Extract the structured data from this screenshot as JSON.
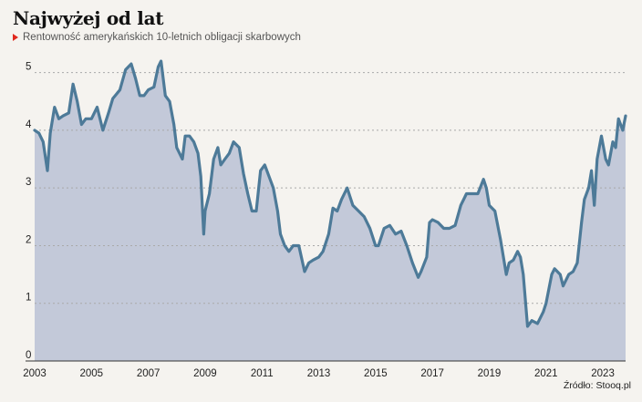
{
  "header": {
    "title": "Najwyżej od lat",
    "subtitle": "Rentowność amerykańskich 10-letnich obligacji skarbowych"
  },
  "footer": {
    "source": "Źródło: Stooq.pl"
  },
  "colors": {
    "line": "#4d7a98",
    "area": "#c3c9d9",
    "grid": "#a9a9a9",
    "marker": "#e0281e"
  },
  "chart_data": {
    "type": "area",
    "title": "Najwyżej od lat",
    "subtitle": "Rentowność amerykańskich 10-letnich obligacji skarbowych",
    "xlabel": "",
    "ylabel": "",
    "xlim": [
      2003.0,
      2023.8
    ],
    "ylim": [
      0,
      5.5
    ],
    "grid": true,
    "x_ticks": [
      "2003",
      "2005",
      "2007",
      "2009",
      "2011",
      "2013",
      "2015",
      "2017",
      "2019",
      "2021",
      "2023"
    ],
    "y_ticks": [
      "0",
      "1",
      "2",
      "3",
      "4",
      "5"
    ],
    "series": [
      {
        "x": [
          2003.0,
          2003.15,
          2003.3,
          2003.45,
          2003.55,
          2003.7,
          2003.85,
          2004.0,
          2004.2,
          2004.35,
          2004.5,
          2004.65,
          2004.8,
          2005.0,
          2005.2,
          2005.4,
          2005.6,
          2005.75,
          2006.0,
          2006.2,
          2006.4,
          2006.55,
          2006.7,
          2006.85,
          2007.0,
          2007.2,
          2007.35,
          2007.45,
          2007.6,
          2007.75,
          2007.9,
          2008.0,
          2008.2,
          2008.3,
          2008.45,
          2008.6,
          2008.75,
          2008.85,
          2008.95,
          2009.0,
          2009.15,
          2009.3,
          2009.45,
          2009.55,
          2009.7,
          2009.85,
          2010.0,
          2010.2,
          2010.35,
          2010.5,
          2010.65,
          2010.8,
          2010.95,
          2011.1,
          2011.25,
          2011.4,
          2011.55,
          2011.65,
          2011.8,
          2011.95,
          2012.1,
          2012.3,
          2012.5,
          2012.65,
          2012.8,
          2013.0,
          2013.15,
          2013.35,
          2013.5,
          2013.65,
          2013.8,
          2014.0,
          2014.2,
          2014.4,
          2014.6,
          2014.8,
          2015.0,
          2015.1,
          2015.3,
          2015.5,
          2015.7,
          2015.9,
          2016.1,
          2016.3,
          2016.5,
          2016.6,
          2016.8,
          2016.9,
          2017.0,
          2017.2,
          2017.4,
          2017.6,
          2017.8,
          2018.0,
          2018.2,
          2018.4,
          2018.6,
          2018.8,
          2018.9,
          2019.0,
          2019.2,
          2019.4,
          2019.6,
          2019.7,
          2019.85,
          2020.0,
          2020.1,
          2020.2,
          2020.35,
          2020.5,
          2020.7,
          2020.9,
          2021.0,
          2021.2,
          2021.3,
          2021.5,
          2021.6,
          2021.8,
          2021.95,
          2022.1,
          2022.25,
          2022.35,
          2022.5,
          2022.6,
          2022.7,
          2022.8,
          2022.95,
          2023.1,
          2023.2,
          2023.35,
          2023.45,
          2023.55,
          2023.7,
          2023.8
        ],
        "values": [
          4.0,
          3.95,
          3.8,
          3.3,
          3.95,
          4.4,
          4.2,
          4.25,
          4.3,
          4.8,
          4.5,
          4.1,
          4.2,
          4.2,
          4.4,
          4.0,
          4.3,
          4.55,
          4.7,
          5.05,
          5.15,
          4.9,
          4.6,
          4.6,
          4.7,
          4.75,
          5.1,
          5.2,
          4.6,
          4.5,
          4.1,
          3.7,
          3.5,
          3.9,
          3.9,
          3.8,
          3.6,
          3.2,
          2.2,
          2.6,
          2.9,
          3.5,
          3.7,
          3.4,
          3.5,
          3.6,
          3.8,
          3.7,
          3.25,
          2.9,
          2.6,
          2.6,
          3.3,
          3.4,
          3.2,
          3.0,
          2.6,
          2.2,
          2.0,
          1.9,
          2.0,
          2.0,
          1.55,
          1.7,
          1.75,
          1.8,
          1.9,
          2.2,
          2.65,
          2.6,
          2.8,
          3.0,
          2.7,
          2.6,
          2.5,
          2.3,
          2.0,
          2.0,
          2.3,
          2.35,
          2.2,
          2.25,
          2.0,
          1.7,
          1.45,
          1.55,
          1.8,
          2.4,
          2.45,
          2.4,
          2.3,
          2.3,
          2.35,
          2.7,
          2.9,
          2.9,
          2.9,
          3.15,
          3.0,
          2.7,
          2.6,
          2.1,
          1.5,
          1.7,
          1.75,
          1.9,
          1.8,
          1.5,
          0.6,
          0.7,
          0.65,
          0.85,
          1.0,
          1.5,
          1.6,
          1.5,
          1.3,
          1.5,
          1.55,
          1.7,
          2.4,
          2.8,
          3.0,
          3.3,
          2.7,
          3.5,
          3.9,
          3.5,
          3.4,
          3.8,
          3.7,
          4.2,
          4.0,
          4.25
        ]
      }
    ]
  }
}
